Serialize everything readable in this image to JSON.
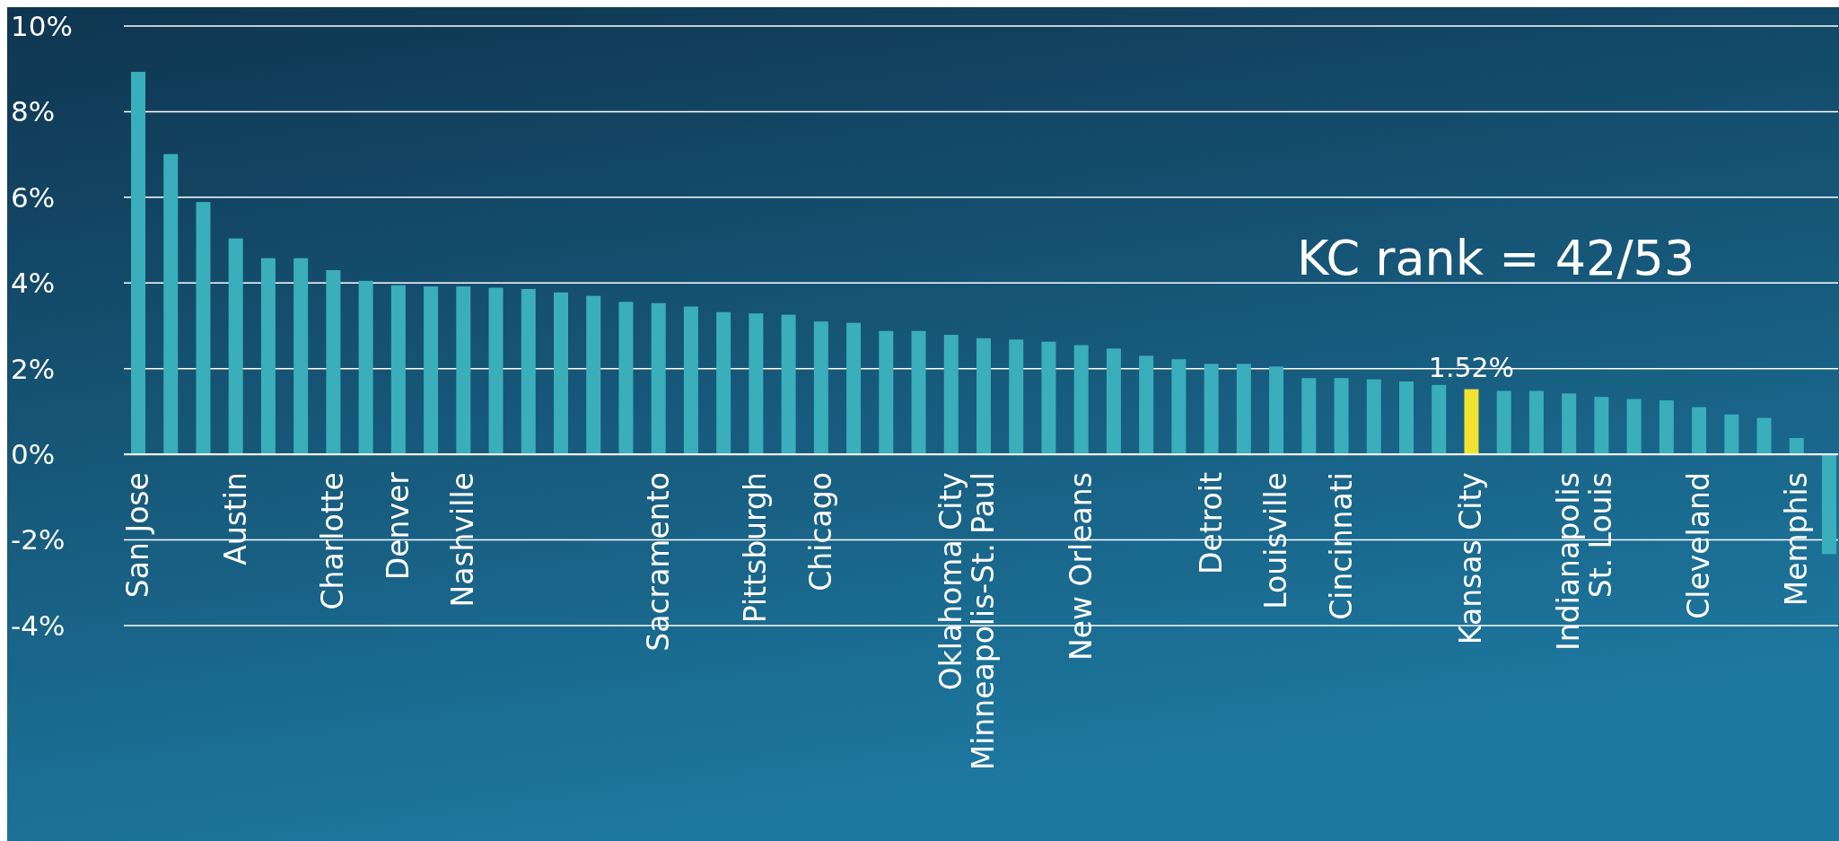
{
  "chart_data": {
    "type": "bar",
    "categories": [
      "San Jose",
      null,
      null,
      "Austin",
      null,
      null,
      "Charlotte",
      null,
      "Denver",
      null,
      "Nashville",
      null,
      null,
      null,
      null,
      null,
      "Sacramento",
      null,
      null,
      "Pittsburgh",
      null,
      "Chicago",
      null,
      null,
      null,
      "Oklahoma City",
      "Minneapolis-St. Paul",
      null,
      null,
      "New Orleans",
      null,
      null,
      null,
      "Detroit",
      null,
      "Louisville",
      null,
      "Cincinnati",
      null,
      null,
      null,
      "Kansas City",
      null,
      null,
      "Indianapolis",
      "St. Louis",
      null,
      null,
      "Cleveland",
      null,
      null,
      "Memphis",
      null
    ],
    "values": [
      8.93,
      7.01,
      5.89,
      5.04,
      4.58,
      4.58,
      4.3,
      4.05,
      3.95,
      3.92,
      3.92,
      3.89,
      3.86,
      3.78,
      3.7,
      3.56,
      3.53,
      3.45,
      3.32,
      3.29,
      3.26,
      3.1,
      3.07,
      2.88,
      2.88,
      2.79,
      2.71,
      2.68,
      2.63,
      2.55,
      2.47,
      2.3,
      2.22,
      2.11,
      2.11,
      2.05,
      1.78,
      1.78,
      1.75,
      1.7,
      1.62,
      1.52,
      1.48,
      1.48,
      1.42,
      1.34,
      1.29,
      1.26,
      1.1,
      0.93,
      0.85,
      0.38,
      -2.33
    ],
    "colors": [
      "#3aaebb",
      "#3aaebb",
      "#3aaebb",
      "#3aaebb",
      "#3aaebb",
      "#3aaebb",
      "#3aaebb",
      "#3aaebb",
      "#3aaebb",
      "#3aaebb",
      "#3aaebb",
      "#3aaebb",
      "#3aaebb",
      "#3aaebb",
      "#3aaebb",
      "#3aaebb",
      "#3aaebb",
      "#3aaebb",
      "#3aaebb",
      "#3aaebb",
      "#3aaebb",
      "#3aaebb",
      "#3aaebb",
      "#3aaebb",
      "#3aaebb",
      "#3aaebb",
      "#3aaebb",
      "#3aaebb",
      "#3aaebb",
      "#3aaebb",
      "#3aaebb",
      "#3aaebb",
      "#3aaebb",
      "#3aaebb",
      "#3aaebb",
      "#3aaebb",
      "#3aaebb",
      "#3aaebb",
      "#3aaebb",
      "#3aaebb",
      "#3aaebb",
      "#f2e232",
      "#3aaebb",
      "#3aaebb",
      "#3aaebb",
      "#3aaebb",
      "#3aaebb",
      "#3aaebb",
      "#3aaebb",
      "#3aaebb",
      "#3aaebb",
      "#3aaebb",
      "#3aaebb"
    ],
    "value_labels": [
      null,
      null,
      null,
      null,
      null,
      null,
      null,
      null,
      null,
      null,
      null,
      null,
      null,
      null,
      null,
      null,
      null,
      null,
      null,
      null,
      null,
      null,
      null,
      null,
      null,
      null,
      null,
      null,
      null,
      null,
      null,
      null,
      null,
      null,
      null,
      null,
      null,
      null,
      null,
      null,
      null,
      "1.52%",
      null,
      null,
      null,
      null,
      null,
      null,
      null,
      null,
      null,
      null,
      null
    ],
    "ylim": [
      -4,
      10
    ],
    "yticks": [
      {
        "value": -4,
        "label": "-4%"
      },
      {
        "value": -2,
        "label": "-2%"
      },
      {
        "value": 0,
        "label": "0%"
      },
      {
        "value": 2,
        "label": "2%"
      },
      {
        "value": 4,
        "label": "4%"
      },
      {
        "value": 6,
        "label": "6%"
      },
      {
        "value": 8,
        "label": "8%"
      },
      {
        "value": 10,
        "label": "10%"
      }
    ],
    "grid": "y",
    "annotations": [
      "KC rank = 42/53"
    ]
  }
}
